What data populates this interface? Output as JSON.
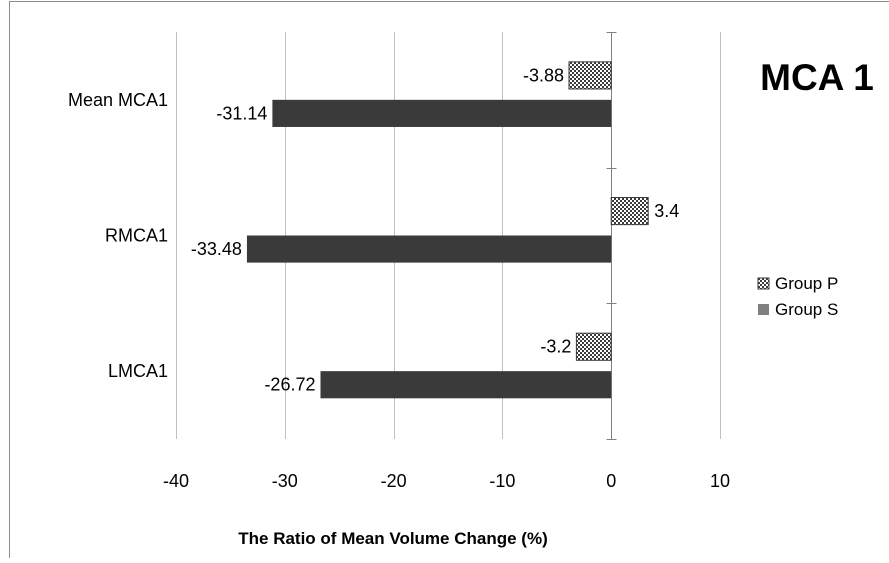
{
  "chart_data": {
    "type": "bar",
    "orientation": "horizontal",
    "title": "MCA 1",
    "xlabel": "The Ratio of Mean Volume Change (%)",
    "ylabel": "",
    "categories": [
      "LMCA1",
      "RMCA1",
      "Mean MCA1"
    ],
    "series": [
      {
        "name": "Group P",
        "values": [
          -3.2,
          3.4,
          -3.88
        ],
        "labels": [
          "-3.2",
          "3.4",
          "-3.88"
        ],
        "fill": "checkered",
        "color": "#3a3a3a"
      },
      {
        "name": "Group S",
        "values": [
          -26.72,
          -33.48,
          -31.14
        ],
        "labels": [
          "-26.72",
          "-33.48",
          "-31.14"
        ],
        "fill": "solid",
        "color": "#3a3a3a"
      }
    ],
    "xlim": [
      -40,
      10
    ],
    "xticks": [
      -40,
      -30,
      -20,
      -10,
      0,
      10
    ],
    "xtick_labels": [
      "-40",
      "-30",
      "-20",
      "-10",
      "0",
      "10"
    ],
    "grid": "vertical",
    "legend": "right",
    "legend_swatch_colors": [
      "#3a3a3a",
      "#808080"
    ],
    "colors": {
      "grid": "#c0c0c0",
      "frame": "#8c8c8c",
      "bar": "#3a3a3a"
    }
  }
}
